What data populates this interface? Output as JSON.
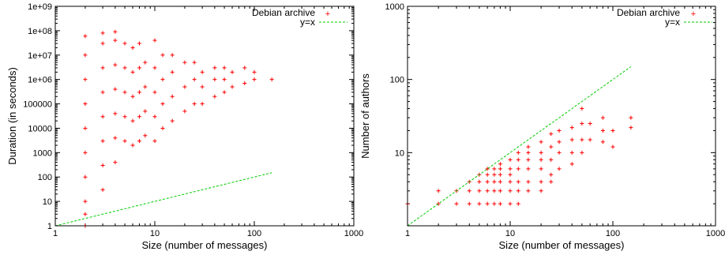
{
  "colors": {
    "series": "#ff0000",
    "reference": "#00cc00",
    "axis": "#000000"
  },
  "chart_data": [
    {
      "type": "scatter",
      "xlabel": "Size (number of messages)",
      "ylabel": "Duration (in seconds)",
      "xscale": "log",
      "yscale": "log",
      "xlim": [
        1,
        1000
      ],
      "ylim": [
        1,
        1000000000
      ],
      "x_ticks": [
        {
          "v": 1,
          "label": "1"
        },
        {
          "v": 10,
          "label": "10"
        },
        {
          "v": 100,
          "label": "100"
        },
        {
          "v": 1000,
          "label": "1000"
        }
      ],
      "y_ticks": [
        {
          "v": 1,
          "label": "1"
        },
        {
          "v": 10,
          "label": "10"
        },
        {
          "v": 100,
          "label": "100"
        },
        {
          "v": 1000,
          "label": "1000"
        },
        {
          "v": 10000,
          "label": "10000"
        },
        {
          "v": 100000,
          "label": "100000"
        },
        {
          "v": 1000000,
          "label": "1e+06"
        },
        {
          "v": 10000000,
          "label": "1e+07"
        },
        {
          "v": 100000000,
          "label": "1e+08"
        },
        {
          "v": 1000000000,
          "label": "1e+09"
        }
      ],
      "legend_position": "top-right",
      "series": [
        {
          "name": "Debian archive",
          "style": "points",
          "points": [
            [
              2,
              1
            ],
            [
              2,
              3
            ],
            [
              2,
              10
            ],
            [
              2,
              100
            ],
            [
              2,
              1000
            ],
            [
              2,
              10000
            ],
            [
              2,
              100000
            ],
            [
              2,
              1000000
            ],
            [
              2,
              10000000
            ],
            [
              2,
              60000000
            ],
            [
              3,
              30
            ],
            [
              3,
              300
            ],
            [
              3,
              3000
            ],
            [
              3,
              30000
            ],
            [
              3,
              300000
            ],
            [
              3,
              3000000
            ],
            [
              3,
              30000000
            ],
            [
              3,
              80000000
            ],
            [
              4,
              400
            ],
            [
              4,
              4000
            ],
            [
              4,
              40000
            ],
            [
              4,
              400000
            ],
            [
              4,
              4000000
            ],
            [
              4,
              40000000
            ],
            [
              4,
              90000000
            ],
            [
              5,
              3000
            ],
            [
              5,
              30000
            ],
            [
              5,
              300000
            ],
            [
              5,
              3000000
            ],
            [
              5,
              30000000
            ],
            [
              6,
              2000
            ],
            [
              6,
              20000
            ],
            [
              6,
              200000
            ],
            [
              6,
              2000000
            ],
            [
              6,
              20000000
            ],
            [
              7,
              3000
            ],
            [
              7,
              30000
            ],
            [
              7,
              300000
            ],
            [
              7,
              3000000
            ],
            [
              7,
              30000000
            ],
            [
              8,
              5000
            ],
            [
              8,
              50000
            ],
            [
              8,
              500000
            ],
            [
              8,
              5000000
            ],
            [
              10,
              3000
            ],
            [
              10,
              30000
            ],
            [
              10,
              300000
            ],
            [
              10,
              3000000
            ],
            [
              10,
              40000000
            ],
            [
              12,
              10000
            ],
            [
              12,
              100000
            ],
            [
              12,
              1000000
            ],
            [
              12,
              10000000
            ],
            [
              15,
              20000
            ],
            [
              15,
              200000
            ],
            [
              15,
              2000000
            ],
            [
              15,
              10000000
            ],
            [
              20,
              50000
            ],
            [
              20,
              500000
            ],
            [
              20,
              5000000
            ],
            [
              25,
              100000
            ],
            [
              25,
              1000000
            ],
            [
              25,
              5000000
            ],
            [
              30,
              100000
            ],
            [
              30,
              500000
            ],
            [
              30,
              2000000
            ],
            [
              40,
              200000
            ],
            [
              40,
              1000000
            ],
            [
              40,
              3000000
            ],
            [
              50,
              300000
            ],
            [
              50,
              1000000
            ],
            [
              50,
              3000000
            ],
            [
              60,
              500000
            ],
            [
              60,
              2000000
            ],
            [
              80,
              700000
            ],
            [
              80,
              3000000
            ],
            [
              100,
              1000000
            ],
            [
              100,
              2000000
            ],
            [
              150,
              1000000
            ]
          ]
        },
        {
          "name": "y=x",
          "style": "line",
          "x": [
            1,
            150
          ],
          "y": [
            1,
            150
          ]
        }
      ]
    },
    {
      "type": "scatter",
      "xlabel": "Size (number of messages)",
      "ylabel": "Number of authors",
      "xscale": "log",
      "yscale": "log",
      "xlim": [
        1,
        1000
      ],
      "ylim": [
        1,
        1000
      ],
      "x_ticks": [
        {
          "v": 1,
          "label": "1"
        },
        {
          "v": 10,
          "label": "10"
        },
        {
          "v": 100,
          "label": "100"
        },
        {
          "v": 1000,
          "label": "1000"
        }
      ],
      "y_ticks": [
        {
          "v": 10,
          "label": "10"
        },
        {
          "v": 100,
          "label": "100"
        },
        {
          "v": 1000,
          "label": "1000"
        }
      ],
      "legend_position": "top-right",
      "series": [
        {
          "name": "Debian archive",
          "style": "points",
          "points": [
            [
              1,
              2
            ],
            [
              2,
              2
            ],
            [
              2,
              3
            ],
            [
              3,
              3
            ],
            [
              3,
              2
            ],
            [
              4,
              4
            ],
            [
              4,
              3
            ],
            [
              4,
              2
            ],
            [
              5,
              5
            ],
            [
              5,
              4
            ],
            [
              5,
              3
            ],
            [
              5,
              2
            ],
            [
              6,
              6
            ],
            [
              6,
              5
            ],
            [
              6,
              4
            ],
            [
              6,
              3
            ],
            [
              6,
              2
            ],
            [
              7,
              6
            ],
            [
              7,
              5
            ],
            [
              7,
              4
            ],
            [
              7,
              3
            ],
            [
              7,
              2
            ],
            [
              8,
              7
            ],
            [
              8,
              6
            ],
            [
              8,
              5
            ],
            [
              8,
              4
            ],
            [
              8,
              3
            ],
            [
              8,
              2
            ],
            [
              10,
              8
            ],
            [
              10,
              6
            ],
            [
              10,
              5
            ],
            [
              10,
              4
            ],
            [
              10,
              3
            ],
            [
              10,
              2
            ],
            [
              12,
              10
            ],
            [
              12,
              8
            ],
            [
              12,
              6
            ],
            [
              12,
              4
            ],
            [
              12,
              3
            ],
            [
              12,
              2
            ],
            [
              15,
              12
            ],
            [
              15,
              10
            ],
            [
              15,
              8
            ],
            [
              15,
              6
            ],
            [
              15,
              4
            ],
            [
              15,
              3
            ],
            [
              20,
              14
            ],
            [
              20,
              10
            ],
            [
              20,
              8
            ],
            [
              20,
              6
            ],
            [
              20,
              4
            ],
            [
              20,
              3
            ],
            [
              25,
              18
            ],
            [
              25,
              12
            ],
            [
              25,
              8
            ],
            [
              25,
              5
            ],
            [
              25,
              4
            ],
            [
              30,
              20
            ],
            [
              30,
              14
            ],
            [
              30,
              10
            ],
            [
              30,
              6
            ],
            [
              40,
              22
            ],
            [
              40,
              15
            ],
            [
              40,
              10
            ],
            [
              40,
              7
            ],
            [
              50,
              40
            ],
            [
              50,
              25
            ],
            [
              50,
              15
            ],
            [
              50,
              10
            ],
            [
              60,
              25
            ],
            [
              60,
              15
            ],
            [
              80,
              30
            ],
            [
              80,
              20
            ],
            [
              80,
              14
            ],
            [
              100,
              20
            ],
            [
              100,
              12
            ],
            [
              150,
              22
            ],
            [
              150,
              30
            ]
          ]
        },
        {
          "name": "y=x",
          "style": "line",
          "x": [
            1,
            150
          ],
          "y": [
            1,
            150
          ]
        }
      ]
    }
  ]
}
